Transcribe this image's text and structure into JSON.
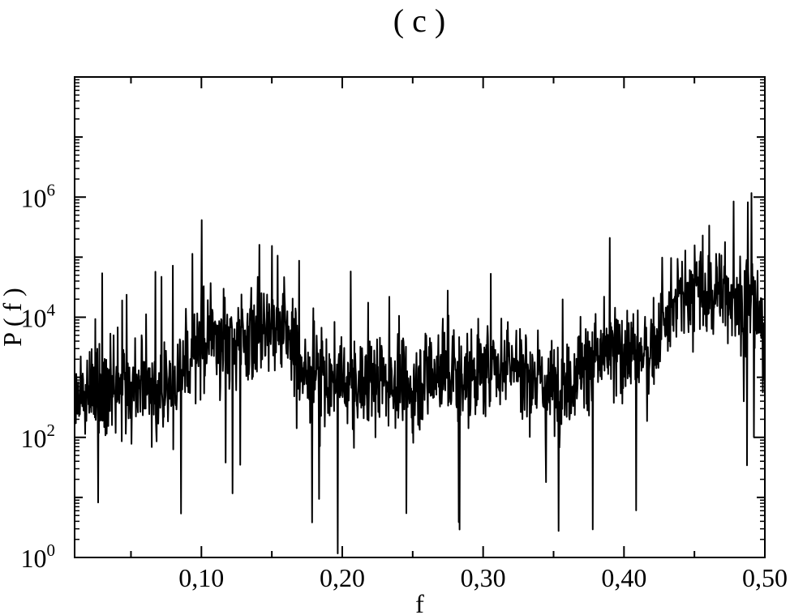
{
  "chart_data": {
    "type": "line",
    "title": "( c )",
    "xlabel": "f",
    "ylabel": "P ( f )",
    "x_scale": "linear",
    "y_scale": "log",
    "xlim": [
      0.01,
      0.5
    ],
    "ylim": [
      1,
      100000000
    ],
    "x_ticks": [
      {
        "value": 0.1,
        "label": "0,10"
      },
      {
        "value": 0.2,
        "label": "0,20"
      },
      {
        "value": 0.3,
        "label": "0,30"
      },
      {
        "value": 0.4,
        "label": "0,40"
      },
      {
        "value": 0.5,
        "label": "0,50"
      }
    ],
    "y_ticks": [
      {
        "value": 1,
        "base": "10",
        "exp": "0"
      },
      {
        "value": 100,
        "base": "10",
        "exp": "2"
      },
      {
        "value": 10000,
        "base": "10",
        "exp": "4"
      },
      {
        "value": 1000000,
        "base": "10",
        "exp": "6"
      }
    ],
    "grid": false,
    "legend": "none",
    "line_color": "#000000",
    "series": [
      {
        "x": [
          0.01,
          0.02,
          0.03,
          0.04,
          0.05,
          0.06,
          0.07,
          0.08,
          0.09,
          0.1,
          0.11,
          0.12,
          0.13,
          0.14,
          0.15,
          0.16,
          0.17,
          0.18,
          0.19,
          0.2,
          0.21,
          0.22,
          0.23,
          0.24,
          0.25,
          0.26,
          0.27,
          0.28,
          0.29,
          0.3,
          0.31,
          0.32,
          0.33,
          0.34,
          0.35,
          0.36,
          0.37,
          0.38,
          0.39,
          0.4,
          0.41,
          0.42,
          0.43,
          0.44,
          0.45,
          0.46,
          0.47,
          0.48,
          0.49,
          0.5
        ],
        "values": [
          500,
          600,
          800,
          700,
          600,
          700,
          500,
          800,
          2000,
          4000,
          5000,
          4000,
          5000,
          6000,
          8000,
          6000,
          1500,
          1000,
          900,
          800,
          700,
          900,
          1000,
          800,
          600,
          1200,
          1500,
          1000,
          1100,
          1200,
          1500,
          2000,
          1200,
          800,
          700,
          900,
          1500,
          2000,
          2500,
          3000,
          2500,
          3000,
          8000,
          20000,
          30000,
          25000,
          30000,
          20000,
          15000,
          5000
        ]
      }
    ]
  }
}
